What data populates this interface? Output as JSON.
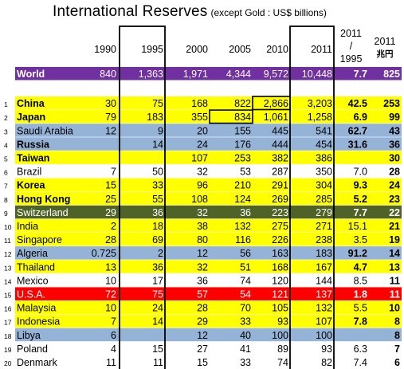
{
  "title": "International Reserves",
  "subtitle": "(except Gold : US$ billions)",
  "chart_data": {
    "type": "table",
    "columns": [
      "1990",
      "1995",
      "2000",
      "2005",
      "2010",
      "2011",
      "2011 / 1995",
      "2011 兆円"
    ],
    "rows": [
      {
        "rank": "",
        "name": "World",
        "values": [
          "840",
          "1,363",
          "1,971",
          "4,344",
          "9,572",
          "10,448",
          "7.7",
          "825"
        ],
        "fill": "#7030a0",
        "text": "#ffffff",
        "bold": true
      },
      {
        "rank": "1",
        "name": "China",
        "values": [
          "30",
          "75",
          "168",
          "822",
          "2,866",
          "3,203",
          "42.5",
          "253"
        ],
        "fill": "#ffff00",
        "text": "#000000",
        "bold": true
      },
      {
        "rank": "2",
        "name": "Japan",
        "values": [
          "79",
          "183",
          "355",
          "834",
          "1,061",
          "1,258",
          "6.9",
          "99"
        ],
        "fill": "#ffff00",
        "text": "#000000",
        "bold": true
      },
      {
        "rank": "3",
        "name": "Saudi Arabia",
        "values": [
          "12",
          "9",
          "20",
          "155",
          "445",
          "541",
          "62.7",
          "43"
        ],
        "fill": "#95b3d7",
        "text": "#000000",
        "bold": false
      },
      {
        "rank": "4",
        "name": "Russia",
        "values": [
          "",
          "14",
          "24",
          "176",
          "444",
          "454",
          "31.6",
          "36"
        ],
        "fill": "#95b3d7",
        "text": "#000000",
        "bold": true
      },
      {
        "rank": "5",
        "name": "Taiwan",
        "values": [
          "",
          "",
          "107",
          "253",
          "382",
          "386",
          "",
          "30"
        ],
        "fill": "#ffff00",
        "text": "#000000",
        "bold": true
      },
      {
        "rank": "6",
        "name": "Brazil",
        "values": [
          "7",
          "50",
          "32",
          "53",
          "287",
          "350",
          "7.0",
          "28"
        ],
        "fill": "#ffffff",
        "text": "#000000",
        "bold": false
      },
      {
        "rank": "7",
        "name": "Korea",
        "values": [
          "15",
          "33",
          "96",
          "210",
          "291",
          "304",
          "9.3",
          "24"
        ],
        "fill": "#ffff00",
        "text": "#000000",
        "bold": true
      },
      {
        "rank": "8",
        "name": "Hong Kong",
        "values": [
          "25",
          "55",
          "108",
          "124",
          "269",
          "285",
          "5.2",
          "23"
        ],
        "fill": "#ffff00",
        "text": "#000000",
        "bold": true
      },
      {
        "rank": "9",
        "name": "Switzerland",
        "values": [
          "29",
          "36",
          "32",
          "36",
          "223",
          "279",
          "7.7",
          "22"
        ],
        "fill": "#4f6228",
        "text": "#ffffff",
        "bold": false
      },
      {
        "rank": "10",
        "name": "India",
        "values": [
          "2",
          "18",
          "38",
          "132",
          "275",
          "271",
          "15.1",
          "21"
        ],
        "fill": "#ffff00",
        "text": "#000000",
        "bold": false
      },
      {
        "rank": "11",
        "name": "Singapore",
        "values": [
          "28",
          "69",
          "80",
          "116",
          "226",
          "238",
          "3.5",
          "19"
        ],
        "fill": "#ffff00",
        "text": "#000000",
        "bold": false
      },
      {
        "rank": "12",
        "name": "Algeria",
        "values": [
          "0.725",
          "2",
          "12",
          "56",
          "163",
          "183",
          "91.2",
          "14"
        ],
        "fill": "#95b3d7",
        "text": "#000000",
        "bold": false
      },
      {
        "rank": "13",
        "name": "Thailand",
        "values": [
          "13",
          "36",
          "32",
          "51",
          "168",
          "167",
          "4.7",
          "13"
        ],
        "fill": "#ffff00",
        "text": "#000000",
        "bold": false
      },
      {
        "rank": "14",
        "name": "Mexico",
        "values": [
          "10",
          "17",
          "36",
          "74",
          "120",
          "144",
          "8.5",
          "11"
        ],
        "fill": "#ffffff",
        "text": "#000000",
        "bold": false
      },
      {
        "rank": "15",
        "name": "U.S.A.",
        "values": [
          "72",
          "75",
          "57",
          "54",
          "121",
          "137",
          "1.8",
          "11"
        ],
        "fill": "#ff0000",
        "text": "#ffffff",
        "bold": false
      },
      {
        "rank": "16",
        "name": "Malaysia",
        "values": [
          "10",
          "24",
          "28",
          "70",
          "105",
          "132",
          "5.5",
          "10"
        ],
        "fill": "#ffff00",
        "text": "#000000",
        "bold": false
      },
      {
        "rank": "17",
        "name": "Indonesia",
        "values": [
          "7",
          "14",
          "29",
          "33",
          "93",
          "107",
          "7.8",
          "8"
        ],
        "fill": "#ffff00",
        "text": "#000000",
        "bold": false
      },
      {
        "rank": "18",
        "name": "Libya",
        "values": [
          "6",
          "",
          "12",
          "40",
          "100",
          "100",
          "",
          "8"
        ],
        "fill": "#95b3d7",
        "text": "#000000",
        "bold": false
      },
      {
        "rank": "19",
        "name": "Poland",
        "values": [
          "4",
          "15",
          "27",
          "41",
          "89",
          "93",
          "6.3",
          "7"
        ],
        "fill": "#ffffff",
        "text": "#000000",
        "bold": false
      },
      {
        "rank": "20",
        "name": "Denmark",
        "values": [
          "11",
          "11",
          "15",
          "33",
          "74",
          "82",
          "7.4",
          "6"
        ],
        "fill": "#ffffff",
        "text": "#000000",
        "bold": false
      }
    ],
    "highlighted_cells": [
      [
        "China",
        "2010"
      ],
      [
        "Japan",
        "2005"
      ]
    ]
  }
}
